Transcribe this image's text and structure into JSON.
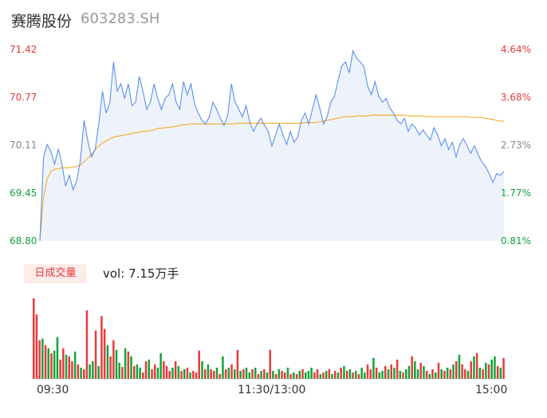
{
  "header": {
    "name": "赛腾股份",
    "code": "603283.SH"
  },
  "volume": {
    "tab_label": "日成交量",
    "vol_label": "vol:",
    "vol_value": "7.15万手"
  },
  "colors": {
    "up": "#e83a3a",
    "down": "#12a43a",
    "price_line": "#5b8ff0",
    "avg_line": "#f2b233",
    "area": "#eef3fb"
  },
  "chart_data": {
    "type": "line",
    "x_ticks": [
      "09:30",
      "11:30/13:00",
      "15:00"
    ],
    "price_axis": {
      "labels": [
        "71.42",
        "70.77",
        "70.11",
        "69.45",
        "68.80"
      ],
      "ylim": [
        68.8,
        71.42
      ]
    },
    "pct_axis": {
      "labels": [
        "4.64%",
        "3.68%",
        "2.73%",
        "1.77%",
        "0.81%"
      ]
    },
    "series": [
      {
        "values": [
          68.8,
          69.95,
          70.12,
          70.02,
          69.85,
          70.06,
          69.85,
          69.55,
          69.7,
          69.5,
          69.62,
          69.9,
          70.45,
          70.18,
          69.95,
          70.05,
          70.4,
          70.85,
          70.55,
          70.7,
          71.25,
          70.85,
          70.95,
          70.75,
          70.95,
          70.65,
          70.7,
          71.05,
          70.85,
          70.6,
          70.7,
          70.95,
          70.75,
          70.6,
          70.75,
          70.8,
          70.95,
          70.7,
          70.6,
          70.98,
          70.8,
          70.95,
          70.68,
          70.55,
          70.45,
          70.4,
          70.5,
          70.7,
          70.6,
          70.48,
          70.38,
          70.52,
          70.95,
          70.7,
          70.6,
          70.5,
          70.65,
          70.42,
          70.3,
          70.4,
          70.48,
          70.38,
          70.3,
          70.1,
          70.25,
          70.4,
          70.25,
          70.12,
          70.3,
          70.15,
          70.22,
          70.45,
          70.55,
          70.4,
          70.6,
          70.8,
          70.62,
          70.4,
          70.5,
          70.7,
          70.78,
          71.0,
          71.2,
          71.25,
          71.1,
          71.4,
          71.3,
          71.25,
          71.18,
          70.92,
          70.8,
          70.98,
          70.78,
          70.7,
          70.75,
          70.62,
          70.55,
          70.45,
          70.4,
          70.48,
          70.3,
          70.4,
          70.35,
          70.25,
          70.32,
          70.25,
          70.18,
          70.35,
          70.25,
          70.1,
          70.2,
          70.05,
          70.15,
          69.95,
          70.12,
          70.2,
          70.1,
          70.0,
          70.1,
          69.98,
          69.88,
          69.82,
          69.72,
          69.6,
          69.72,
          69.7,
          69.75
        ]
      },
      {
        "values": [
          68.8,
          69.4,
          69.65,
          69.75,
          69.78,
          69.79,
          69.8,
          69.8,
          69.8,
          69.81,
          69.82,
          69.84,
          69.88,
          69.93,
          69.98,
          70.05,
          70.1,
          70.14,
          70.17,
          70.2,
          70.22,
          70.23,
          70.24,
          70.25,
          70.26,
          70.27,
          70.28,
          70.29,
          70.3,
          70.3,
          70.31,
          70.32,
          70.34,
          70.34,
          70.35,
          70.35,
          70.36,
          70.37,
          70.38,
          70.39,
          70.39,
          70.4,
          70.4,
          70.4,
          70.4,
          70.4,
          70.4,
          70.4,
          70.4,
          70.4,
          70.4,
          70.4,
          70.4,
          70.4,
          70.41,
          70.41,
          70.41,
          70.41,
          70.41,
          70.41,
          70.41,
          70.41,
          70.41,
          70.41,
          70.41,
          70.41,
          70.41,
          70.41,
          70.41,
          70.41,
          70.41,
          70.41,
          70.42,
          70.42,
          70.42,
          70.42,
          70.43,
          70.44,
          70.45,
          70.46,
          70.47,
          70.48,
          70.49,
          70.5,
          70.5,
          70.5,
          70.51,
          70.51,
          70.51,
          70.51,
          70.52,
          70.52,
          70.52,
          70.52,
          70.52,
          70.52,
          70.52,
          70.52,
          70.52,
          70.52,
          70.51,
          70.51,
          70.51,
          70.51,
          70.51,
          70.5,
          70.5,
          70.5,
          70.5,
          70.5,
          70.5,
          70.5,
          70.5,
          70.5,
          70.5,
          70.5,
          70.5,
          70.49,
          70.49,
          70.49,
          70.49,
          70.48,
          70.47,
          70.46,
          70.45,
          70.44,
          70.44
        ]
      }
    ],
    "volume_bars": {
      "values": [
        100,
        80,
        48,
        50,
        42,
        38,
        32,
        35,
        52,
        24,
        38,
        30,
        28,
        22,
        34,
        18,
        14,
        12,
        85,
        18,
        22,
        60,
        16,
        78,
        62,
        42,
        28,
        48,
        36,
        20,
        15,
        38,
        34,
        28,
        16,
        18,
        14,
        8,
        22,
        24,
        12,
        18,
        14,
        32,
        22,
        16,
        10,
        14,
        22,
        16,
        10,
        12,
        14,
        8,
        10,
        8,
        35,
        22,
        12,
        18,
        12,
        10,
        14,
        6,
        28,
        12,
        14,
        18,
        12,
        36,
        10,
        12,
        14,
        8,
        12,
        14,
        6,
        10,
        12,
        8,
        36,
        10,
        6,
        12,
        10,
        8,
        14,
        6,
        8,
        6,
        10,
        12,
        8,
        10,
        14,
        8,
        12,
        6,
        8,
        10,
        12,
        6,
        10,
        8,
        14,
        16,
        10,
        12,
        8,
        10,
        6,
        14,
        8,
        18,
        12,
        26,
        14,
        8,
        10,
        16,
        12,
        18,
        14,
        24,
        10,
        8,
        12,
        16,
        28,
        22,
        12,
        20,
        16,
        10,
        6,
        12,
        8,
        20,
        12,
        10,
        14,
        12,
        18,
        22,
        30,
        18,
        12,
        10,
        22,
        28,
        32,
        14,
        12,
        20,
        18,
        24,
        28,
        16,
        14,
        26
      ],
      "directions": [
        "u",
        "u",
        "u",
        "d",
        "u",
        "d",
        "u",
        "d",
        "d",
        "u",
        "u",
        "d",
        "u",
        "u",
        "d",
        "u",
        "d",
        "u",
        "u",
        "d",
        "d",
        "u",
        "d",
        "u",
        "u",
        "d",
        "u",
        "u",
        "d",
        "d",
        "u",
        "d",
        "u",
        "d",
        "u",
        "d",
        "d",
        "u",
        "u",
        "d",
        "u",
        "u",
        "d",
        "d",
        "u",
        "u",
        "u",
        "d",
        "u",
        "d",
        "u",
        "d",
        "u",
        "d",
        "u",
        "u",
        "u",
        "d",
        "u",
        "d",
        "u",
        "u",
        "d",
        "u",
        "d",
        "u",
        "d",
        "u",
        "d",
        "u",
        "d",
        "u",
        "d",
        "d",
        "u",
        "d",
        "u",
        "d",
        "u",
        "d",
        "u",
        "d",
        "u",
        "d",
        "u",
        "u",
        "d",
        "u",
        "d",
        "u",
        "d",
        "u",
        "d",
        "d",
        "d",
        "u",
        "u",
        "d",
        "u",
        "d",
        "u",
        "d",
        "u",
        "d",
        "u",
        "d",
        "u",
        "d",
        "u",
        "d",
        "u",
        "d",
        "d",
        "u",
        "u",
        "d",
        "u",
        "d",
        "d",
        "u",
        "d",
        "u",
        "d",
        "u",
        "d",
        "u",
        "d",
        "d",
        "u",
        "d",
        "d",
        "u",
        "d",
        "u",
        "d",
        "u",
        "d",
        "u",
        "d",
        "u",
        "d",
        "u",
        "d",
        "u",
        "d",
        "u",
        "u",
        "d",
        "u",
        "d",
        "u",
        "d",
        "u",
        "d",
        "u",
        "d",
        "d",
        "u",
        "d",
        "u"
      ]
    }
  }
}
